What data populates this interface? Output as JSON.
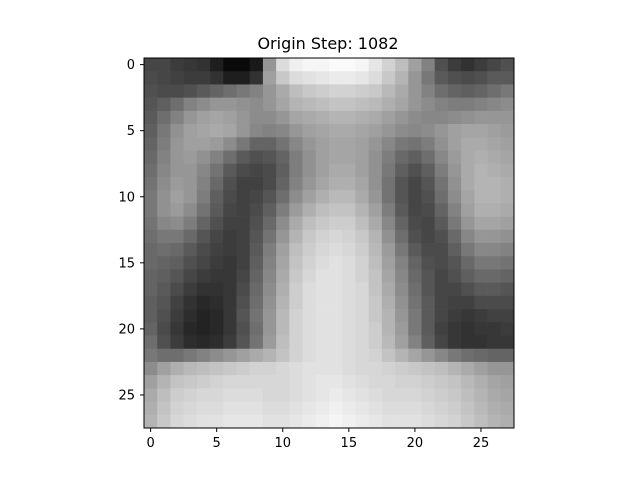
{
  "chart_data": {
    "type": "heatmap",
    "title": "Origin Step: 1082",
    "xlabel": "",
    "ylabel": "",
    "colormap": "gray",
    "value_range": [
      0,
      255
    ],
    "xlim": [
      -0.5,
      27.5
    ],
    "ylim": [
      27.5,
      -0.5
    ],
    "xticks": [
      0,
      5,
      10,
      15,
      20,
      25
    ],
    "yticks": [
      0,
      5,
      10,
      15,
      20,
      25
    ],
    "xtick_labels": [
      "0",
      "5",
      "10",
      "15",
      "20",
      "25"
    ],
    "ytick_labels": [
      "0",
      "5",
      "10",
      "15",
      "20",
      "25"
    ],
    "grid": false,
    "rows": 28,
    "cols": 28,
    "values": [
      [
        70,
        70,
        60,
        55,
        50,
        30,
        10,
        10,
        25,
        150,
        220,
        240,
        245,
        245,
        250,
        250,
        245,
        230,
        210,
        190,
        160,
        130,
        80,
        60,
        50,
        60,
        70,
        80
      ],
      [
        75,
        70,
        65,
        60,
        60,
        50,
        30,
        30,
        50,
        160,
        200,
        220,
        225,
        230,
        235,
        235,
        230,
        220,
        200,
        180,
        150,
        120,
        90,
        80,
        75,
        80,
        90,
        90
      ],
      [
        80,
        75,
        75,
        80,
        90,
        100,
        110,
        120,
        130,
        150,
        170,
        190,
        200,
        205,
        210,
        210,
        205,
        200,
        185,
        170,
        150,
        130,
        110,
        100,
        95,
        100,
        110,
        120
      ],
      [
        85,
        95,
        110,
        130,
        140,
        150,
        150,
        145,
        140,
        150,
        165,
        180,
        185,
        190,
        195,
        195,
        190,
        185,
        175,
        165,
        150,
        140,
        130,
        125,
        125,
        130,
        135,
        140
      ],
      [
        90,
        110,
        130,
        150,
        160,
        165,
        160,
        150,
        140,
        140,
        150,
        165,
        170,
        175,
        180,
        180,
        175,
        170,
        160,
        150,
        140,
        135,
        135,
        140,
        145,
        150,
        150,
        150
      ],
      [
        95,
        120,
        145,
        160,
        165,
        170,
        165,
        150,
        135,
        130,
        135,
        150,
        160,
        165,
        170,
        170,
        165,
        160,
        150,
        140,
        135,
        140,
        150,
        160,
        165,
        165,
        160,
        155
      ],
      [
        100,
        125,
        150,
        160,
        160,
        155,
        140,
        120,
        100,
        100,
        115,
        135,
        150,
        160,
        165,
        165,
        160,
        150,
        135,
        120,
        115,
        125,
        145,
        160,
        170,
        170,
        165,
        160
      ],
      [
        105,
        130,
        150,
        155,
        145,
        130,
        110,
        90,
        80,
        85,
        100,
        125,
        145,
        160,
        165,
        165,
        160,
        145,
        125,
        105,
        95,
        110,
        135,
        155,
        170,
        175,
        170,
        165
      ],
      [
        110,
        135,
        150,
        150,
        135,
        115,
        90,
        75,
        70,
        75,
        95,
        125,
        145,
        160,
        170,
        170,
        160,
        145,
        120,
        95,
        80,
        95,
        125,
        150,
        170,
        180,
        175,
        170
      ],
      [
        115,
        140,
        155,
        150,
        130,
        105,
        80,
        65,
        65,
        75,
        100,
        130,
        150,
        165,
        175,
        175,
        165,
        145,
        115,
        85,
        70,
        85,
        115,
        145,
        170,
        180,
        180,
        175
      ],
      [
        120,
        145,
        160,
        150,
        125,
        95,
        75,
        65,
        70,
        85,
        110,
        140,
        160,
        175,
        185,
        185,
        170,
        150,
        115,
        85,
        70,
        80,
        110,
        140,
        165,
        180,
        180,
        175
      ],
      [
        120,
        145,
        155,
        140,
        115,
        90,
        70,
        65,
        75,
        95,
        125,
        155,
        175,
        190,
        195,
        195,
        180,
        160,
        125,
        90,
        70,
        75,
        100,
        130,
        160,
        175,
        175,
        170
      ],
      [
        115,
        135,
        140,
        125,
        100,
        80,
        65,
        65,
        80,
        105,
        140,
        170,
        190,
        200,
        205,
        205,
        190,
        170,
        135,
        100,
        75,
        70,
        90,
        120,
        150,
        165,
        165,
        160
      ],
      [
        110,
        120,
        120,
        105,
        85,
        70,
        60,
        65,
        85,
        115,
        150,
        180,
        200,
        210,
        215,
        210,
        200,
        180,
        145,
        110,
        80,
        70,
        80,
        105,
        135,
        150,
        150,
        145
      ],
      [
        105,
        110,
        105,
        90,
        75,
        65,
        60,
        65,
        90,
        125,
        160,
        190,
        205,
        215,
        220,
        215,
        205,
        185,
        155,
        120,
        90,
        75,
        75,
        95,
        120,
        135,
        135,
        130
      ],
      [
        105,
        100,
        95,
        80,
        70,
        60,
        55,
        65,
        95,
        130,
        165,
        195,
        210,
        220,
        225,
        220,
        210,
        190,
        160,
        130,
        100,
        80,
        75,
        85,
        105,
        120,
        120,
        115
      ],
      [
        100,
        95,
        85,
        70,
        60,
        55,
        55,
        70,
        100,
        135,
        170,
        200,
        215,
        225,
        225,
        220,
        210,
        195,
        165,
        135,
        105,
        85,
        70,
        80,
        95,
        105,
        105,
        100
      ],
      [
        100,
        90,
        75,
        60,
        50,
        50,
        55,
        75,
        105,
        140,
        175,
        205,
        220,
        225,
        225,
        220,
        215,
        195,
        170,
        140,
        110,
        85,
        70,
        70,
        80,
        90,
        90,
        85
      ],
      [
        95,
        85,
        65,
        50,
        40,
        45,
        55,
        80,
        110,
        145,
        180,
        205,
        220,
        225,
        225,
        220,
        215,
        200,
        175,
        145,
        115,
        90,
        70,
        65,
        65,
        75,
        75,
        75
      ],
      [
        95,
        80,
        60,
        45,
        35,
        40,
        55,
        85,
        115,
        150,
        185,
        210,
        220,
        225,
        225,
        220,
        215,
        200,
        180,
        150,
        120,
        90,
        70,
        60,
        55,
        60,
        65,
        65
      ],
      [
        100,
        75,
        55,
        40,
        35,
        40,
        55,
        80,
        110,
        150,
        185,
        210,
        220,
        225,
        225,
        220,
        215,
        205,
        180,
        155,
        120,
        90,
        65,
        55,
        50,
        55,
        55,
        60
      ],
      [
        110,
        80,
        60,
        45,
        40,
        45,
        60,
        85,
        115,
        155,
        190,
        210,
        220,
        225,
        225,
        220,
        215,
        205,
        185,
        160,
        130,
        95,
        70,
        55,
        50,
        50,
        55,
        55
      ],
      [
        120,
        110,
        110,
        120,
        130,
        140,
        150,
        160,
        170,
        180,
        195,
        210,
        220,
        225,
        225,
        220,
        215,
        210,
        195,
        180,
        165,
        150,
        135,
        120,
        110,
        105,
        100,
        100
      ],
      [
        140,
        160,
        175,
        185,
        190,
        195,
        200,
        205,
        210,
        210,
        215,
        220,
        225,
        225,
        225,
        220,
        215,
        215,
        210,
        205,
        200,
        195,
        190,
        180,
        170,
        160,
        150,
        150
      ],
      [
        160,
        180,
        195,
        200,
        205,
        210,
        215,
        215,
        215,
        215,
        215,
        220,
        225,
        230,
        230,
        225,
        220,
        215,
        215,
        210,
        210,
        205,
        200,
        195,
        185,
        175,
        165,
        160
      ],
      [
        170,
        190,
        205,
        210,
        215,
        215,
        220,
        220,
        220,
        215,
        215,
        220,
        225,
        230,
        235,
        230,
        225,
        220,
        215,
        215,
        215,
        210,
        205,
        200,
        190,
        180,
        170,
        165
      ],
      [
        175,
        195,
        210,
        215,
        220,
        220,
        225,
        225,
        225,
        220,
        220,
        225,
        230,
        235,
        240,
        235,
        230,
        225,
        220,
        220,
        220,
        215,
        210,
        205,
        195,
        185,
        175,
        170
      ],
      [
        180,
        200,
        215,
        220,
        225,
        225,
        230,
        230,
        230,
        225,
        225,
        230,
        235,
        240,
        245,
        240,
        235,
        230,
        225,
        225,
        225,
        220,
        215,
        210,
        200,
        190,
        180,
        175
      ]
    ]
  }
}
